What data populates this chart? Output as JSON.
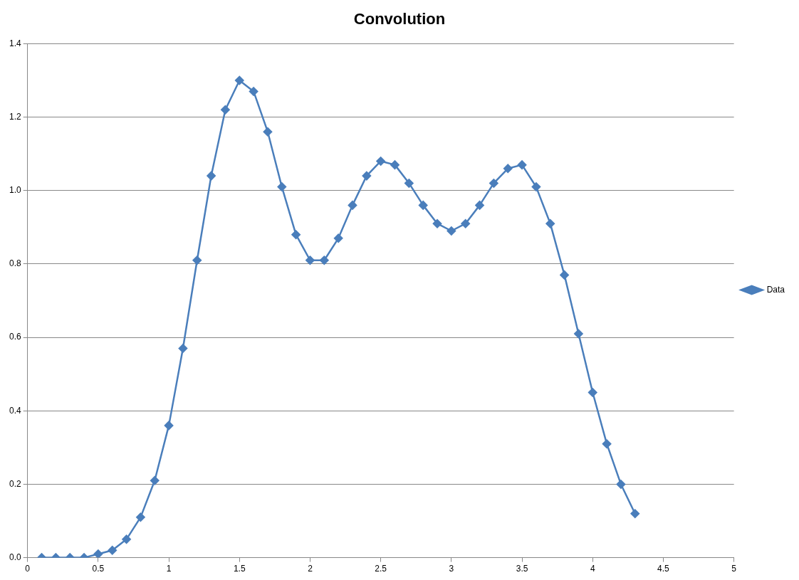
{
  "chart_data": {
    "type": "line",
    "title": "Convolution",
    "x": [
      0.1,
      0.2,
      0.3,
      0.4,
      0.5,
      0.6,
      0.7,
      0.8,
      0.9,
      1.0,
      1.1,
      1.2,
      1.3,
      1.4,
      1.5,
      1.6,
      1.7,
      1.8,
      1.9,
      2.0,
      2.1,
      2.2,
      2.3,
      2.4,
      2.5,
      2.6,
      2.7,
      2.8,
      2.9,
      3.0,
      3.1,
      3.2,
      3.3,
      3.4,
      3.5,
      3.6,
      3.7,
      3.8,
      3.9,
      4.0,
      4.1,
      4.2,
      4.3
    ],
    "series": [
      {
        "name": "Data",
        "color": "#4a7ebb",
        "values": [
          0,
          0,
          0,
          0,
          0.01,
          0.02,
          0.05,
          0.11,
          0.21,
          0.36,
          0.57,
          0.81,
          1.04,
          1.22,
          1.3,
          1.27,
          1.16,
          1.01,
          0.88,
          0.81,
          0.81,
          0.87,
          0.96,
          1.04,
          1.08,
          1.07,
          1.02,
          0.96,
          0.91,
          0.89,
          0.91,
          0.96,
          1.02,
          1.06,
          1.07,
          1.01,
          0.91,
          0.77,
          0.61,
          0.45,
          0.31,
          0.2,
          0.12
        ]
      }
    ],
    "xlim": [
      0,
      5
    ],
    "xticks": [
      0,
      0.5,
      1,
      1.5,
      2,
      2.5,
      3,
      3.5,
      4,
      4.5,
      5
    ],
    "ylim": [
      0,
      1.4
    ],
    "yticks": [
      {
        "value": 0,
        "label": "0.0"
      },
      {
        "value": 0.2,
        "label": "0.2"
      },
      {
        "value": 0.4,
        "label": "0.4"
      },
      {
        "value": 0.6,
        "label": "0.6"
      },
      {
        "value": 0.8,
        "label": "0.8"
      },
      {
        "value": 1.0,
        "label": "1.0"
      },
      {
        "value": 1.2,
        "label": "1.2"
      },
      {
        "value": 1.4,
        "label": "1.4"
      }
    ],
    "grid": "y",
    "legend": "right",
    "marker": "diamond",
    "line_style": "solid"
  }
}
